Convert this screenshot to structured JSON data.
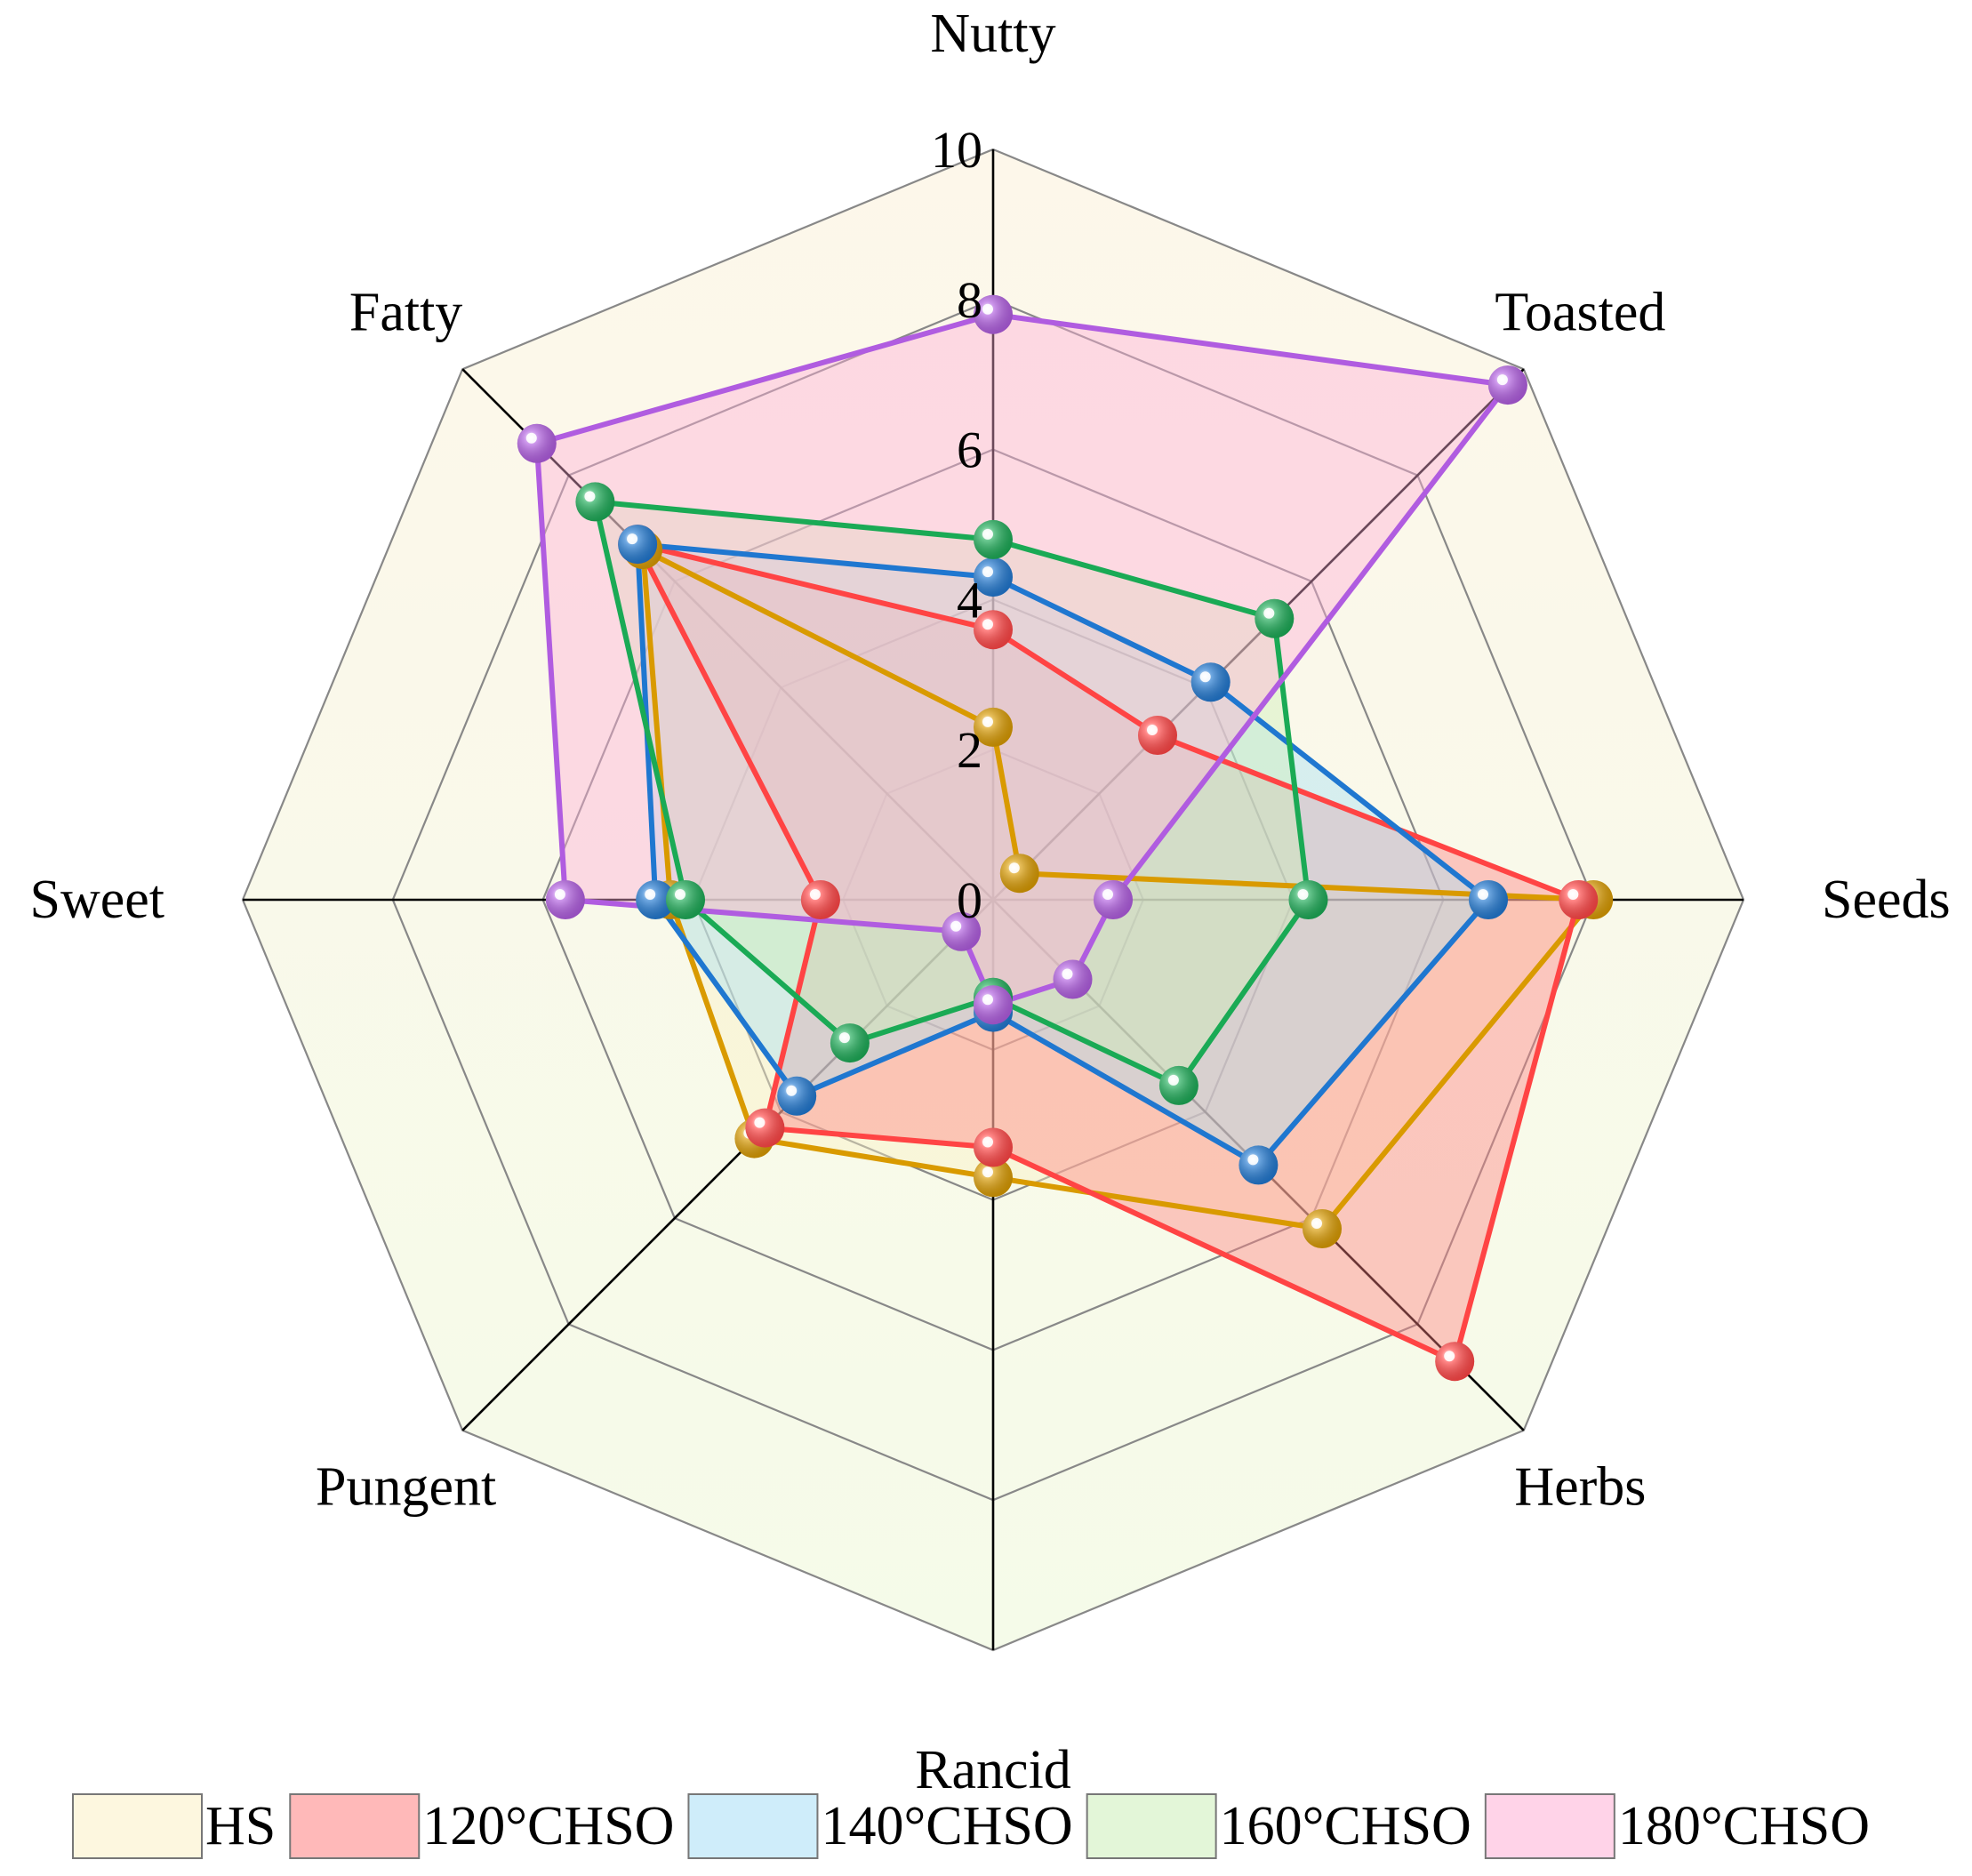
{
  "chart_data": {
    "type": "radar",
    "axes": [
      "Nutty",
      "Toasted",
      "Seeds",
      "Herbs",
      "Rancid",
      "Pungent",
      "Sweet",
      "Fatty"
    ],
    "rlim": [
      0,
      10
    ],
    "ticks": [
      "0",
      "2",
      "4",
      "6",
      "8",
      "10"
    ],
    "grid": true,
    "legend_position": "bottom",
    "series": [
      {
        "name": "HS",
        "values": [
          2.3,
          0.5,
          8.0,
          6.2,
          3.7,
          4.5,
          4.3,
          6.6
        ],
        "line_color": "#d99a00",
        "fill_color": "#fbf1c4"
      },
      {
        "name": "120°CHSO",
        "values": [
          3.6,
          3.1,
          7.8,
          8.7,
          3.3,
          4.3,
          2.3,
          6.7
        ],
        "line_color": "#ff4444",
        "fill_color": "#ff8080"
      },
      {
        "name": "140°CHSO",
        "values": [
          4.3,
          4.1,
          6.6,
          5.0,
          1.5,
          3.7,
          4.5,
          6.7
        ],
        "line_color": "#1f77d0",
        "fill_color": "#a8dff5"
      },
      {
        "name": "160°CHSO",
        "values": [
          4.8,
          5.3,
          4.2,
          3.5,
          1.3,
          2.7,
          4.1,
          7.5
        ],
        "line_color": "#1aaa55",
        "fill_color": "#ccefb8"
      },
      {
        "name": "180°CHSO",
        "values": [
          7.8,
          9.7,
          1.6,
          1.5,
          1.4,
          0.6,
          5.7,
          8.6
        ],
        "line_color": "#b05ce0",
        "fill_color": "#ffaed6"
      }
    ]
  }
}
